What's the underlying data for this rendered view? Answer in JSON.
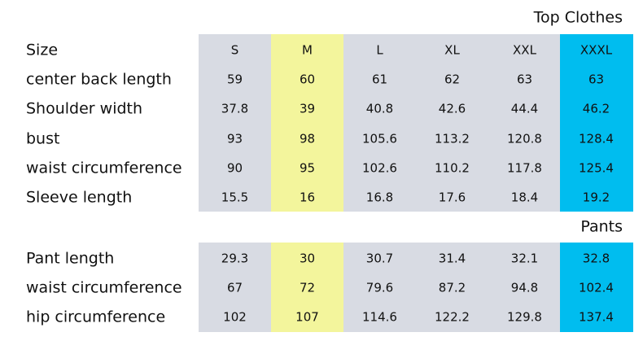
{
  "sections": [
    {
      "title": "Top Clothes",
      "header": {
        "label": "Size",
        "sizes": [
          "S",
          "M",
          "L",
          "XL",
          "XXL",
          "XXXL"
        ]
      },
      "rows": [
        {
          "label": "center back length",
          "values": [
            59,
            60,
            61,
            62,
            63,
            63
          ]
        },
        {
          "label": "Shoulder width",
          "values": [
            37.8,
            39,
            40.8,
            42.6,
            44.4,
            46.2
          ]
        },
        {
          "label": "bust",
          "values": [
            93,
            98,
            105.6,
            113.2,
            120.8,
            128.4
          ]
        },
        {
          "label": "waist circumference",
          "values": [
            90,
            95,
            102.6,
            110.2,
            117.8,
            125.4
          ]
        },
        {
          "label": "Sleeve length",
          "values": [
            15.5,
            16,
            16.8,
            17.6,
            18.4,
            19.2
          ]
        }
      ]
    },
    {
      "title": "Pants",
      "rows": [
        {
          "label": "Pant length",
          "values": [
            29.3,
            30,
            30.7,
            31.4,
            32.1,
            32.8
          ]
        },
        {
          "label": "waist circumference",
          "values": [
            67,
            72,
            79.6,
            87.2,
            94.8,
            102.4
          ]
        },
        {
          "label": "hip circumference",
          "values": [
            102,
            107,
            114.6,
            122.2,
            129.8,
            137.4
          ]
        }
      ]
    }
  ]
}
